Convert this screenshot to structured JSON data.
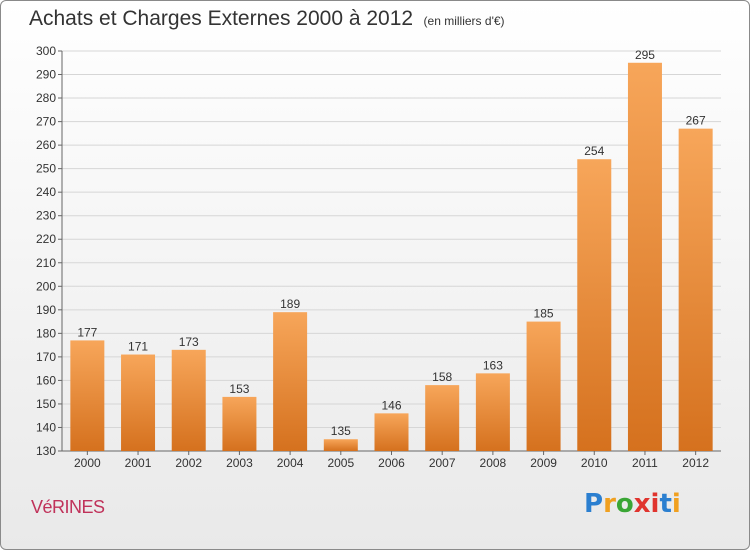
{
  "title": "Achats et Charges Externes 2000 à 2012",
  "unit": "(en milliers d'€)",
  "commune": "VéRINES",
  "logo": {
    "letters": [
      "P",
      "r",
      "o",
      "x",
      "i",
      "t",
      "i"
    ],
    "colors": [
      "#2b7fd0",
      "#f0a020",
      "#3aa635",
      "#e0342e",
      "#e0342e",
      "#2b7fd0",
      "#f0a020"
    ]
  },
  "colors": {
    "bar_light": "#f7a65a",
    "bar_dark": "#d5711e",
    "grid": "#d6d6d6",
    "text": "#333333"
  },
  "chart_data": {
    "type": "bar",
    "categories": [
      "2000",
      "2001",
      "2002",
      "2003",
      "2004",
      "2005",
      "2006",
      "2007",
      "2008",
      "2009",
      "2010",
      "2011",
      "2012"
    ],
    "values": [
      177,
      171,
      173,
      153,
      189,
      135,
      146,
      158,
      163,
      185,
      254,
      295,
      267
    ],
    "ylim": [
      130,
      300
    ],
    "yticks": [
      130,
      140,
      150,
      160,
      170,
      180,
      190,
      200,
      210,
      220,
      230,
      240,
      250,
      260,
      270,
      280,
      290,
      300
    ],
    "grid": true
  }
}
